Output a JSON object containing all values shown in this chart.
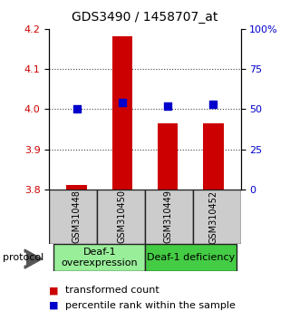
{
  "title": "GDS3490 / 1458707_at",
  "samples": [
    "GSM310448",
    "GSM310450",
    "GSM310449",
    "GSM310452"
  ],
  "transformed_counts": [
    3.812,
    4.182,
    3.965,
    3.965
  ],
  "percentile_ranks": [
    50,
    54,
    52,
    53
  ],
  "ylim_left": [
    3.8,
    4.2
  ],
  "ylim_right": [
    0,
    100
  ],
  "yticks_left": [
    3.8,
    3.9,
    4.0,
    4.1,
    4.2
  ],
  "yticks_right": [
    0,
    25,
    50,
    75,
    100
  ],
  "ytick_labels_right": [
    "0",
    "25",
    "50",
    "75",
    "100%"
  ],
  "bar_color": "#cc0000",
  "dot_color": "#0000cc",
  "bar_bottom": 3.8,
  "groups": [
    {
      "label": "Deaf-1\noverexpression",
      "indices": [
        0,
        1
      ],
      "color": "#99ee99"
    },
    {
      "label": "Deaf-1 deficiency",
      "indices": [
        2,
        3
      ],
      "color": "#44cc44"
    }
  ],
  "protocol_label": "protocol",
  "legend_bar_label": "transformed count",
  "legend_dot_label": "percentile rank within the sample",
  "title_fontsize": 10,
  "tick_fontsize": 8,
  "label_fontsize": 8,
  "sample_label_fontsize": 7,
  "group_label_fontsize": 8,
  "background_color": "#ffffff",
  "plot_bg_color": "#ffffff",
  "grid_color": "#555555",
  "sample_box_color": "#cccccc",
  "bar_width": 0.45
}
